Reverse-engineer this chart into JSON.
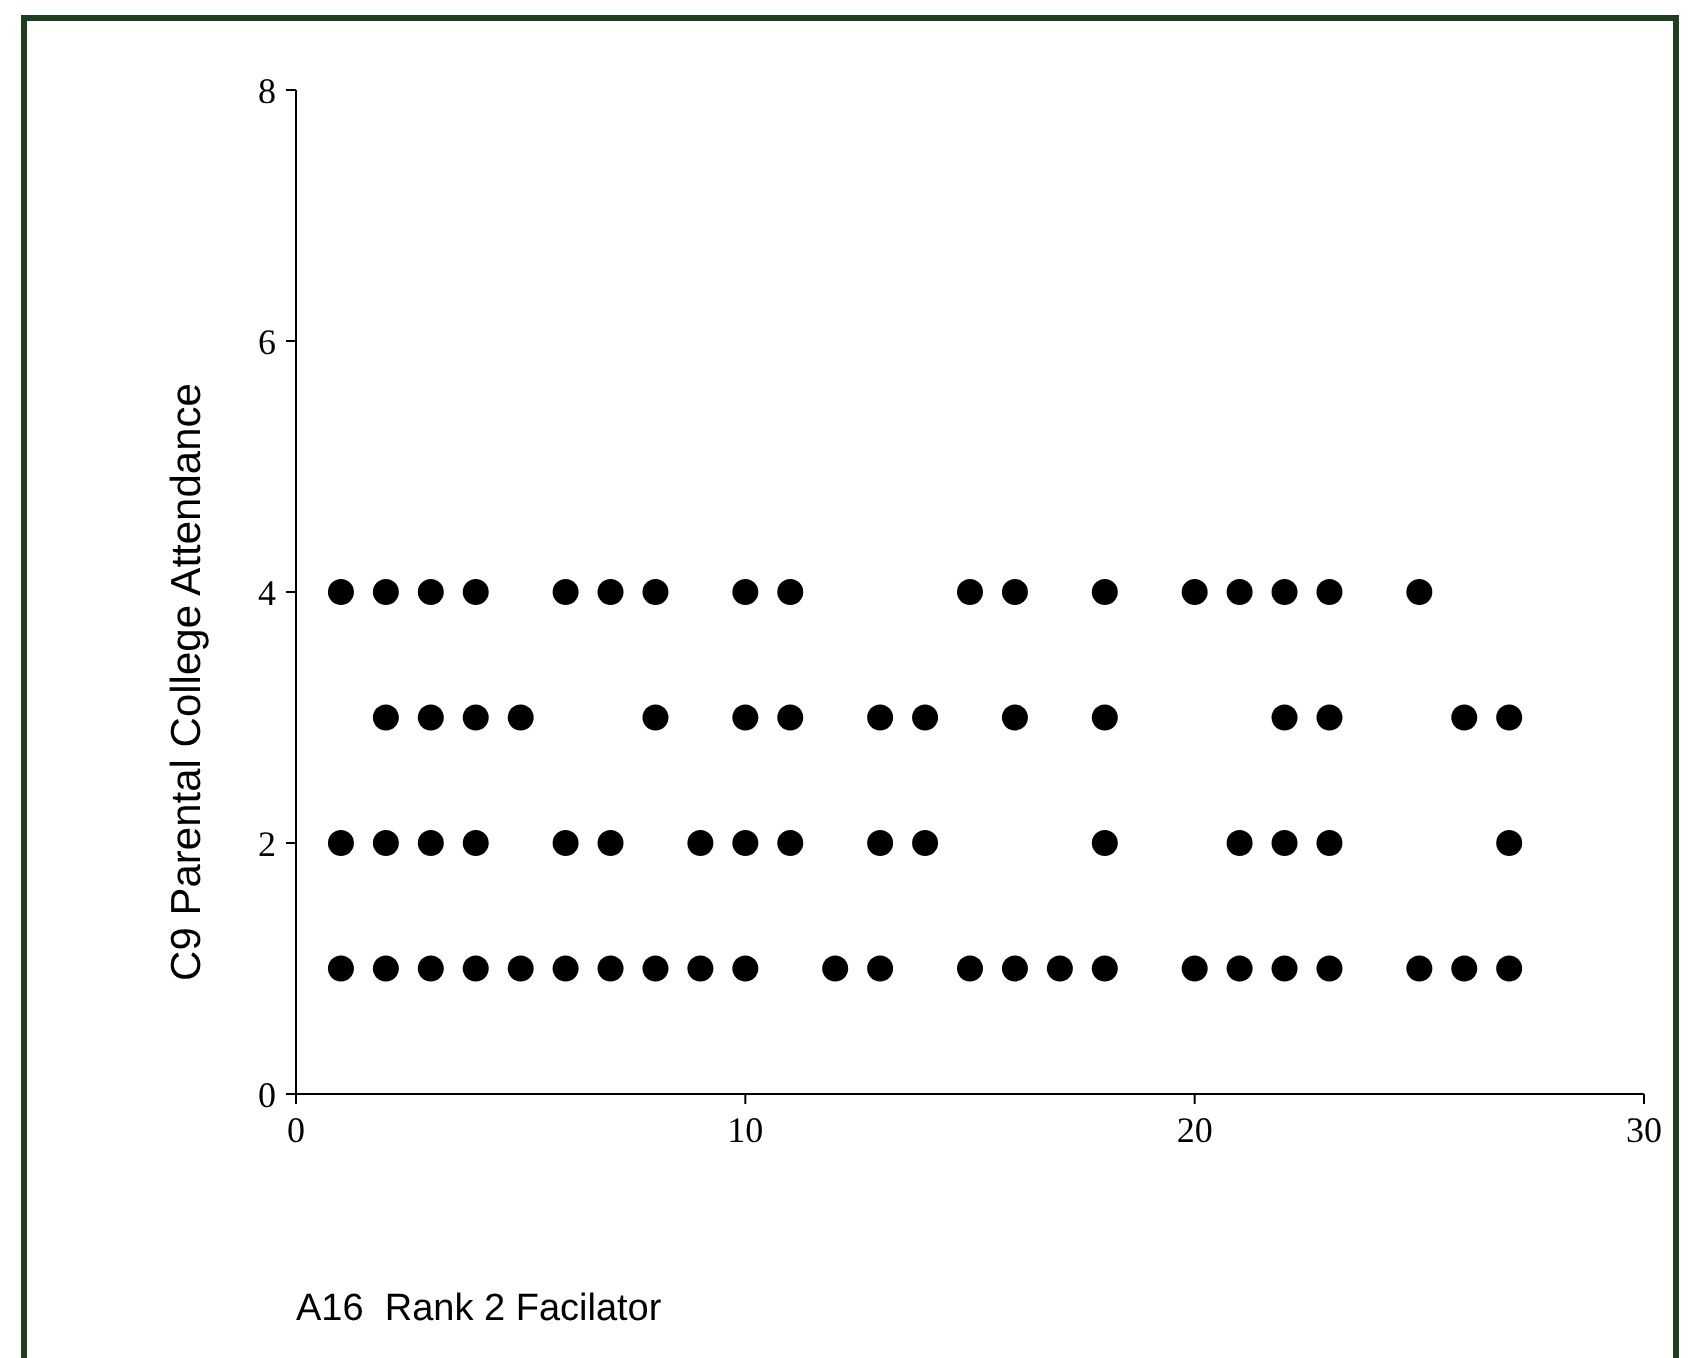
{
  "chart_data": {
    "type": "scatter",
    "xlabel": "A16  Rank 2 Facilator",
    "ylabel": "C9 Parental College Attendance",
    "xlim": [
      0,
      30
    ],
    "xticks": [
      0,
      10,
      20,
      30
    ],
    "ylim": [
      0,
      8
    ],
    "yticks": [
      0,
      2,
      4,
      6,
      8
    ],
    "grid": false,
    "marker": "circle",
    "series": [
      {
        "color": "#000000",
        "x": [
          1,
          2,
          3,
          4,
          6,
          7,
          8,
          10,
          11,
          15,
          16,
          18,
          20,
          21,
          22,
          23,
          25,
          2,
          3,
          4,
          5,
          8,
          10,
          11,
          13,
          14,
          16,
          18,
          22,
          23,
          26,
          27,
          1,
          2,
          3,
          4,
          6,
          7,
          9,
          10,
          11,
          13,
          14,
          18,
          21,
          22,
          23,
          27,
          1,
          2,
          3,
          4,
          5,
          6,
          7,
          8,
          9,
          10,
          12,
          13,
          15,
          16,
          17,
          18,
          20,
          21,
          22,
          23,
          25,
          26,
          27
        ],
        "values": [
          4,
          4,
          4,
          4,
          4,
          4,
          4,
          4,
          4,
          4,
          4,
          4,
          4,
          4,
          4,
          4,
          4,
          3,
          3,
          3,
          3,
          3,
          3,
          3,
          3,
          3,
          3,
          3,
          3,
          3,
          3,
          3,
          2,
          2,
          2,
          2,
          2,
          2,
          2,
          2,
          2,
          2,
          2,
          2,
          2,
          2,
          2,
          2,
          1,
          1,
          1,
          1,
          1,
          1,
          1,
          1,
          1,
          1,
          1,
          1,
          1,
          1,
          1,
          1,
          1,
          1,
          1,
          1,
          1,
          1,
          1
        ]
      }
    ]
  }
}
